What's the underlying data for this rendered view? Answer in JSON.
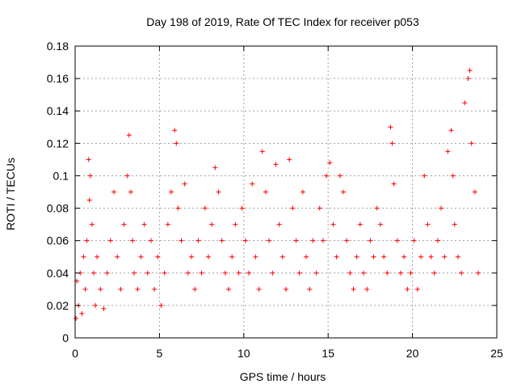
{
  "chart_data": {
    "type": "scatter",
    "title": "Day 198 of 2019, Rate Of TEC Index for receiver p053",
    "xlabel": "GPS time / hours",
    "ylabel": "ROTI / TECUs",
    "xlim": [
      0,
      25
    ],
    "ylim": [
      0,
      0.18
    ],
    "xticks": [
      0,
      5,
      10,
      15,
      20,
      25
    ],
    "yticks": [
      0,
      0.02,
      0.04,
      0.06,
      0.08,
      0.1,
      0.12,
      0.14,
      0.16,
      0.18
    ],
    "xtick_labels": [
      "0",
      "5",
      "10",
      "15",
      "20",
      "25"
    ],
    "ytick_labels": [
      "0",
      "0.02",
      "0.04",
      "0.06",
      "0.08",
      "0.1",
      "0.12",
      "0.14",
      "0.16",
      "0.18"
    ],
    "grid": true,
    "marker": "plus",
    "color": "#ff0000",
    "series": [
      {
        "x": [
          0.05,
          0.1,
          0.2,
          0.3,
          0.4,
          0.5,
          0.6,
          0.7,
          0.8,
          0.85,
          0.9,
          1.0,
          1.1,
          1.2,
          1.3,
          1.5,
          1.7,
          1.9,
          2.1,
          2.3,
          2.5,
          2.7,
          2.9,
          3.1,
          3.2,
          3.3,
          3.4,
          3.5,
          3.7,
          3.9,
          4.1,
          4.3,
          4.5,
          4.7,
          4.9,
          5.1,
          5.3,
          5.5,
          5.7,
          5.9,
          6.0,
          6.1,
          6.3,
          6.5,
          6.7,
          6.9,
          7.1,
          7.3,
          7.5,
          7.7,
          7.9,
          8.1,
          8.3,
          8.5,
          8.7,
          8.9,
          9.1,
          9.3,
          9.5,
          9.7,
          9.9,
          10.1,
          10.3,
          10.5,
          10.7,
          10.9,
          11.1,
          11.3,
          11.5,
          11.7,
          11.9,
          12.1,
          12.3,
          12.5,
          12.7,
          12.9,
          13.1,
          13.3,
          13.5,
          13.7,
          13.9,
          14.1,
          14.3,
          14.5,
          14.7,
          14.9,
          15.1,
          15.3,
          15.5,
          15.7,
          15.9,
          16.1,
          16.3,
          16.5,
          16.7,
          16.9,
          17.1,
          17.3,
          17.5,
          17.7,
          17.9,
          18.1,
          18.3,
          18.5,
          18.7,
          18.8,
          18.9,
          19.1,
          19.3,
          19.5,
          19.7,
          19.9,
          20.1,
          20.3,
          20.5,
          20.7,
          20.9,
          21.1,
          21.3,
          21.5,
          21.7,
          21.9,
          22.1,
          22.3,
          22.4,
          22.5,
          22.7,
          22.9,
          23.1,
          23.3,
          23.4,
          23.5,
          23.7,
          23.9
        ],
        "y": [
          0.012,
          0.035,
          0.02,
          0.04,
          0.015,
          0.05,
          0.03,
          0.06,
          0.11,
          0.085,
          0.1,
          0.07,
          0.04,
          0.02,
          0.05,
          0.03,
          0.018,
          0.04,
          0.06,
          0.09,
          0.05,
          0.03,
          0.07,
          0.1,
          0.125,
          0.09,
          0.06,
          0.04,
          0.03,
          0.05,
          0.07,
          0.04,
          0.06,
          0.03,
          0.05,
          0.02,
          0.04,
          0.07,
          0.09,
          0.128,
          0.12,
          0.08,
          0.06,
          0.095,
          0.04,
          0.05,
          0.03,
          0.06,
          0.04,
          0.08,
          0.05,
          0.07,
          0.105,
          0.09,
          0.06,
          0.04,
          0.03,
          0.05,
          0.07,
          0.04,
          0.08,
          0.06,
          0.04,
          0.095,
          0.05,
          0.03,
          0.115,
          0.09,
          0.06,
          0.04,
          0.107,
          0.07,
          0.05,
          0.03,
          0.11,
          0.08,
          0.06,
          0.04,
          0.09,
          0.05,
          0.03,
          0.06,
          0.04,
          0.08,
          0.06,
          0.1,
          0.108,
          0.07,
          0.05,
          0.1,
          0.09,
          0.06,
          0.04,
          0.03,
          0.05,
          0.07,
          0.04,
          0.03,
          0.06,
          0.05,
          0.08,
          0.07,
          0.05,
          0.04,
          0.13,
          0.12,
          0.095,
          0.06,
          0.04,
          0.05,
          0.03,
          0.04,
          0.06,
          0.03,
          0.05,
          0.1,
          0.07,
          0.05,
          0.04,
          0.06,
          0.08,
          0.05,
          0.115,
          0.128,
          0.1,
          0.07,
          0.05,
          0.04,
          0.145,
          0.16,
          0.165,
          0.12,
          0.09,
          0.04
        ]
      }
    ]
  }
}
